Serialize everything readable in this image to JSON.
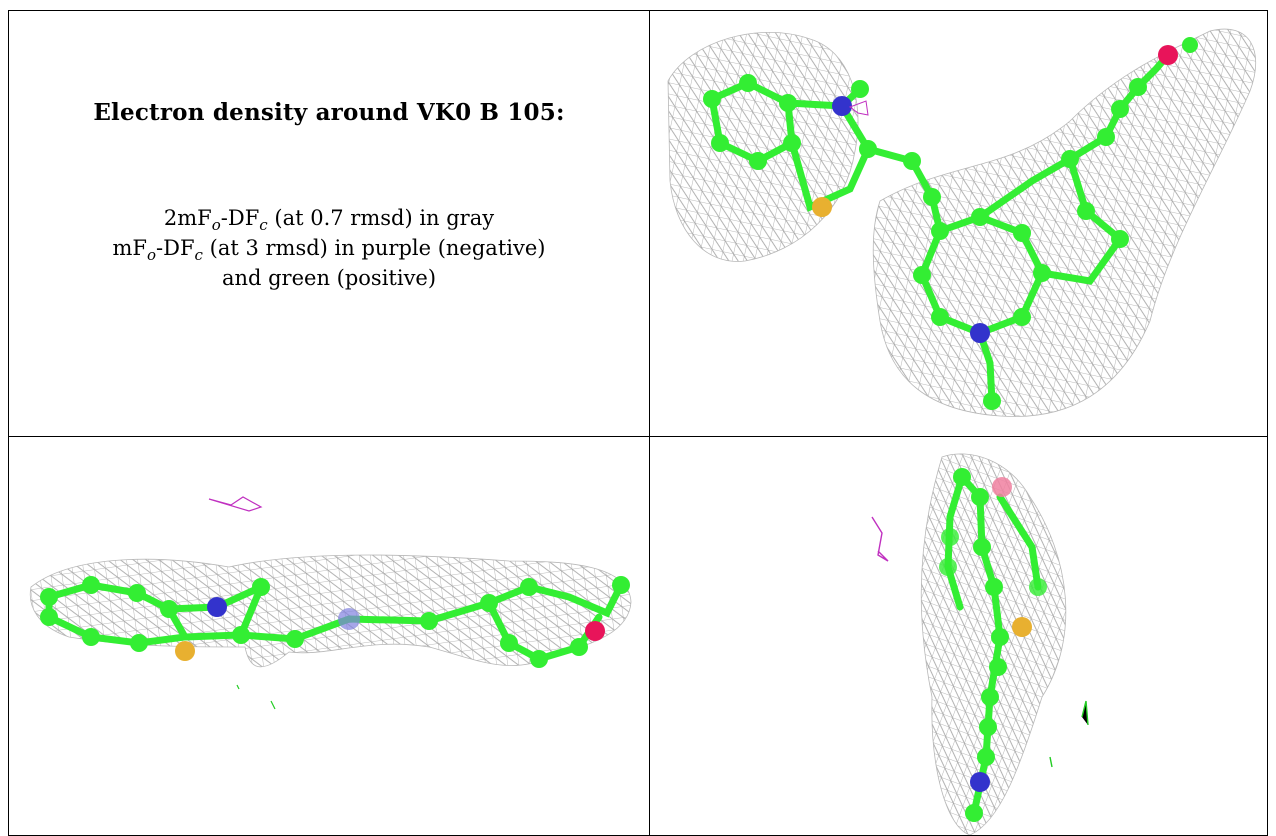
{
  "caption": {
    "title": "Electron density around VK0 B 105:",
    "line1": {
      "a": "2mF",
      "sub1": "o",
      "b": "-DF",
      "sub2": "c",
      "c": " (at 0.7 rmsd) in gray"
    },
    "line2": {
      "a": "mF",
      "sub1": "o",
      "b": "-DF",
      "sub2": "c",
      "c": " (at 3 rmsd) in purple (negative)"
    },
    "line3": "and green (positive)"
  },
  "colors": {
    "carbon": "#33ee33",
    "nitrogen": "#3333cc",
    "sulfur": "#e8b030",
    "oxygen": "#e8145a",
    "mesh_gray": "#9a9a9a",
    "mesh_purple": "#c030c0",
    "mesh_green": "#22cc22"
  }
}
